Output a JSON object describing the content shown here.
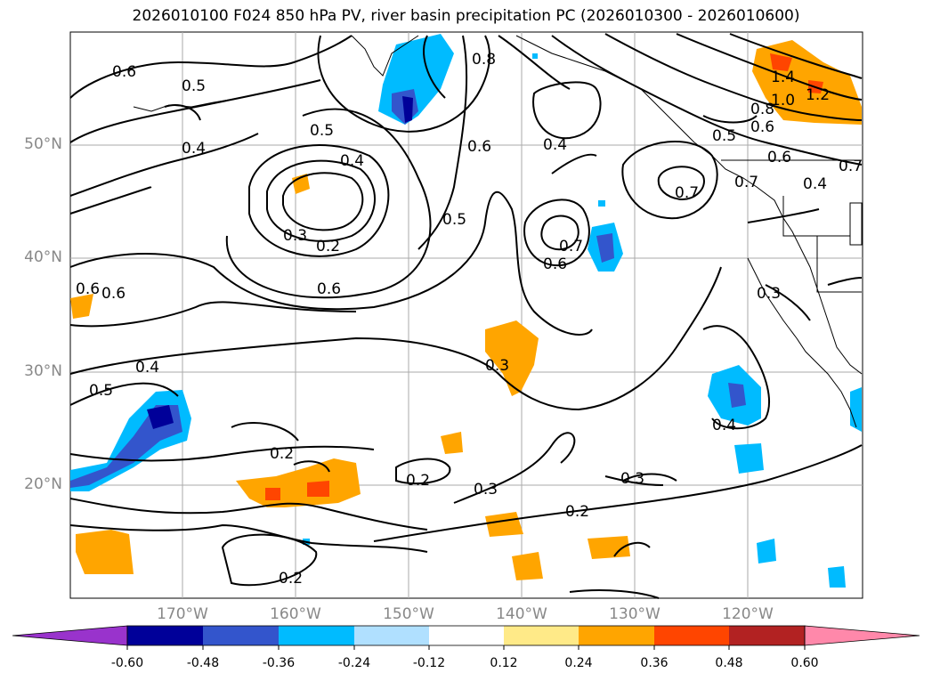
{
  "title": "2026010100 F024 850 hPa PV, river basin precipitation PC (2026010300 - 2026010600)",
  "latitude_labels": [
    "50°N",
    "40°N",
    "30°N",
    "20°N"
  ],
  "longitude_labels": [
    "170°W",
    "160°W",
    "150°W",
    "140°W",
    "130°W",
    "120°W"
  ],
  "contour_labels": [
    "0.6",
    "0.5",
    "0.4",
    "0.8",
    "0.6",
    "0.4",
    "1.4",
    "1.2",
    "1.0",
    "0.8",
    "0.6",
    "0.5",
    "0.5",
    "0.4",
    "0.7",
    "0.7",
    "0.6",
    "0.7",
    "0.4",
    "0.3",
    "0.2",
    "0.5",
    "0.7",
    "0.6",
    "0.6",
    "0.6",
    "0.6",
    "0.3",
    "0.4",
    "0.5",
    "0.3",
    "0.4",
    "0.2",
    "0.2",
    "0.3",
    "0.3",
    "0.2",
    "0.2"
  ],
  "colorbar": {
    "tick_labels": [
      "-0.60",
      "-0.48",
      "-0.36",
      "-0.24",
      "-0.12",
      "0.12",
      "0.24",
      "0.36",
      "0.48",
      "0.60"
    ],
    "colors": [
      "#9933cc",
      "#000099",
      "#3355cc",
      "#00bbff",
      "#b0e0ff",
      "#ffffff",
      "#ffea88",
      "#ffa500",
      "#ff4500",
      "#b22222",
      "#ff88aa"
    ]
  },
  "colors": {
    "land_line": "#000000",
    "grid": "#aaaaaa",
    "axis_label": "#888888"
  }
}
